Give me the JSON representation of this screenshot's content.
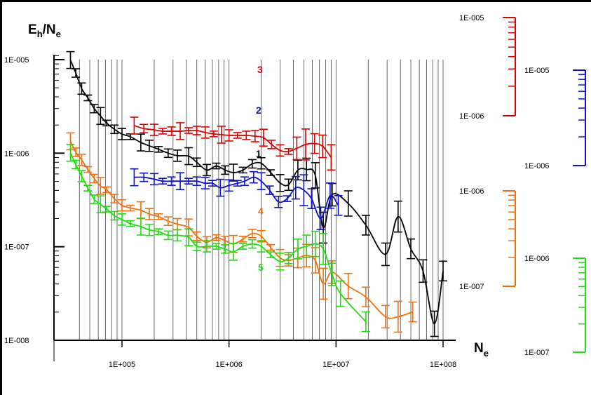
{
  "chart_data": {
    "type": "line",
    "ylabel_main": "E",
    "ylabel_sub": "h",
    "ylabel_slash": "/N",
    "ylabel_sub2": "e",
    "xlabel_main": "N",
    "xlabel_sub": "e",
    "x_scale": "log",
    "y_scale": "log",
    "xlim": [
      30000,
      120000000
    ],
    "ylim": [
      1e-08,
      1.2e-05
    ],
    "x_tick_labels": [
      {
        "value": 100000,
        "label": "1E+005"
      },
      {
        "value": 1000000,
        "label": "1E+006"
      },
      {
        "value": 10000000,
        "label": "1E+007"
      },
      {
        "value": 100000000,
        "label": "1E+008"
      }
    ],
    "y_tick_labels": [
      {
        "value": 1e-05,
        "label": "1E-005"
      },
      {
        "value": 1e-06,
        "label": "1E-006"
      },
      {
        "value": 1e-07,
        "label": "1E-007"
      },
      {
        "value": 1e-08,
        "label": "1E-008"
      }
    ],
    "grid": "vertical log gridlines",
    "series": [
      {
        "name": "1",
        "color": "#000000",
        "axis": "main",
        "x": [
          33000,
          37000,
          42000,
          48000,
          55000,
          63000,
          72000,
          85000,
          100000,
          120000,
          150000,
          180000,
          220000,
          270000,
          330000,
          420000,
          500000,
          620000,
          760000,
          920000,
          1100000,
          1350000,
          1650000,
          2000000,
          2450000,
          3000000,
          3600000,
          4400000,
          5300000,
          6400000,
          7600000,
          9200000,
          13000000,
          19000000,
          29000000,
          38000000,
          50000000,
          65000000,
          83000000,
          100000000
        ],
        "y": [
          9.9e-06,
          7.2e-06,
          4.9e-06,
          3.9e-06,
          3e-06,
          2.5e-06,
          2.1e-06,
          1.8e-06,
          1.6e-06,
          1.5e-06,
          1.3e-06,
          1.2e-06,
          1.1e-06,
          1e-06,
          9.4e-07,
          9.3e-07,
          8e-07,
          6.6e-07,
          7.3e-07,
          6.6e-07,
          6.2e-07,
          6.6e-07,
          7.7e-07,
          7.8e-07,
          6.2e-07,
          4.8e-07,
          4.6e-07,
          6.6e-07,
          6.7e-07,
          5.8e-07,
          1.6e-07,
          3.6e-07,
          2.9e-07,
          1.7e-07,
          8.3e-08,
          2.1e-07,
          9.5e-08,
          5.5e-08,
          1.5e-08,
          5.5e-08
        ]
      },
      {
        "name": "2",
        "color": "#1010d0",
        "axis": "right_blue",
        "x": [
          130000,
          160000,
          200000,
          240000,
          290000,
          350000,
          420000,
          500000,
          600000,
          700000,
          830000,
          1000000,
          1200000,
          1400000,
          1700000,
          2000000,
          2400000,
          2900000,
          3500000,
          4200000,
          5000000,
          5900000,
          7200000,
          8800000,
          10500000
        ],
        "y": [
          2.2e-06,
          2.2e-06,
          2.1e-06,
          2e-06,
          2e-06,
          2e-06,
          2e-06,
          2e-06,
          1.9e-06,
          1.9e-06,
          1.7e-06,
          1.8e-06,
          1.9e-06,
          2e-06,
          2.2e-06,
          2e-06,
          1.6e-06,
          1.2e-06,
          1.3e-06,
          1.7e-06,
          1.6e-06,
          1.3e-06,
          8e-07,
          1.4e-06,
          1.1e-06
        ]
      },
      {
        "name": "3",
        "color": "#e00000",
        "axis": "right_red",
        "x": [
          130000,
          160000,
          200000,
          240000,
          290000,
          350000,
          420000,
          500000,
          600000,
          720000,
          850000,
          1000000,
          1200000,
          1450000,
          1750000,
          2100000,
          2500000,
          3000000,
          3600000,
          4300000,
          5200000,
          6300000,
          7500000,
          9000000
        ],
        "y": [
          7e-06,
          6.5e-06,
          6.3e-06,
          6.1e-06,
          6.1e-06,
          6.1e-06,
          6.2e-06,
          6.2e-06,
          5.9e-06,
          5.7e-06,
          5.6e-06,
          5.5e-06,
          5.5e-06,
          5.5e-06,
          5.4e-06,
          5.2e-06,
          4.4e-06,
          3.8e-06,
          3.7e-06,
          4e-06,
          4.4e-06,
          4.5e-06,
          4.2e-06,
          3.2e-06
        ]
      },
      {
        "name": "4",
        "color": "#f07010",
        "axis": "right_orange",
        "x": [
          33000,
          37000,
          42000,
          48000,
          55000,
          63000,
          72000,
          85000,
          100000,
          120000,
          150000,
          180000,
          220000,
          270000,
          330000,
          420000,
          500000,
          620000,
          760000,
          920000,
          1100000,
          1350000,
          1650000,
          2000000,
          2450000,
          3000000,
          3600000,
          4400000,
          5300000,
          6400000,
          7600000,
          9200000,
          13000000,
          19000000,
          29000000,
          38000000,
          52000000
        ],
        "y": [
          3e-06,
          2.3e-06,
          1.9e-06,
          1.5e-06,
          1.2e-06,
          1e-06,
          9.1e-07,
          7.3e-07,
          6.2e-07,
          5.8e-07,
          5.5e-07,
          5e-07,
          4.7e-07,
          4.2e-07,
          3.9e-07,
          3.6e-07,
          2.9e-07,
          2.5e-07,
          2.8e-07,
          2.6e-07,
          2.4e-07,
          2.7e-07,
          3.1e-07,
          2.9e-07,
          2.2e-07,
          1.7e-07,
          1.6e-07,
          1.7e-07,
          1.8e-07,
          1.6e-07,
          9e-08,
          1.2e-07,
          8.5e-08,
          6.5e-08,
          4e-08,
          4e-08,
          4.5e-08
        ]
      },
      {
        "name": "5",
        "color": "#20dd10",
        "axis": "right_green",
        "x": [
          33000,
          37000,
          42000,
          48000,
          55000,
          63000,
          72000,
          85000,
          100000,
          120000,
          150000,
          180000,
          220000,
          270000,
          330000,
          420000,
          500000,
          620000,
          760000,
          920000,
          1100000,
          1350000,
          1650000,
          2000000,
          2450000,
          3000000,
          3600000,
          4400000,
          5300000,
          6400000,
          7600000,
          9200000,
          11000000,
          19000000
        ],
        "y": [
          1.6e-06,
          1.2e-06,
          9e-07,
          6.7e-07,
          5.1e-07,
          4.5e-07,
          4e-07,
          3.4e-07,
          3.1e-07,
          2.8e-07,
          2.6e-07,
          2.4e-07,
          2.3e-07,
          2.1e-07,
          2.1e-07,
          2e-07,
          1.6e-07,
          1.6e-07,
          1.6e-07,
          1.5e-07,
          1.4e-07,
          1.6e-07,
          1.7e-07,
          1.6e-07,
          1.3e-07,
          1.1e-07,
          1.2e-07,
          1.5e-07,
          1.6e-07,
          1.7e-07,
          1.5e-07,
          8e-08,
          5e-08,
          2.5e-08
        ]
      }
    ],
    "series_labels": {
      "s1": "1",
      "s2": "2",
      "s3": "3",
      "s4": "4",
      "s5": "5"
    },
    "right_axes": [
      {
        "name": "red",
        "color": "#e00000",
        "top_label": "1E-005",
        "bottom_label": "1E-006"
      },
      {
        "name": "blue",
        "color": "#1010d0",
        "top_label": "1E-005",
        "bottom_label": "1E-006"
      },
      {
        "name": "orange",
        "color": "#f07010",
        "top_label": "1E-006",
        "bottom_label": "1E-007"
      },
      {
        "name": "green",
        "color": "#20dd10",
        "top_label": "1E-006",
        "bottom_label": "1E-007"
      }
    ]
  }
}
